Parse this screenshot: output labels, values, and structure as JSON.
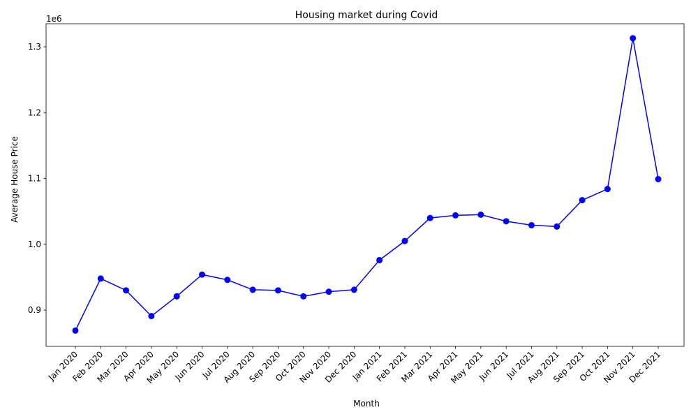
{
  "chart_data": {
    "type": "line",
    "title": "Housing market during Covid",
    "xlabel": "Month",
    "ylabel": "Average House Price",
    "y_offset_text": "1e6",
    "y_multiplier": 1000000,
    "categories": [
      "Jan 2020",
      "Feb 2020",
      "Mar 2020",
      "Apr 2020",
      "May 2020",
      "Jun 2020",
      "Jul 2020",
      "Aug 2020",
      "Sep 2020",
      "Oct 2020",
      "Nov 2020",
      "Dec 2020",
      "Jan 2021",
      "Feb 2021",
      "Mar 2021",
      "Apr 2021",
      "May 2021",
      "Jun 2021",
      "Jul 2021",
      "Aug 2021",
      "Sep 2021",
      "Oct 2021",
      "Nov 2021",
      "Dec 2021"
    ],
    "series": [
      {
        "values": [
          869000,
          948000,
          930000,
          891000,
          921000,
          954000,
          946000,
          931000,
          930000,
          921000,
          928000,
          931000,
          976000,
          1005000,
          1040000,
          1044000,
          1045000,
          1035000,
          1029000,
          1027000,
          1067000,
          1084000,
          1313000,
          1099000
        ],
        "color": "#0000ff"
      }
    ],
    "ylim": [
      845000,
      1335000
    ],
    "yticks": [
      900000,
      1000000,
      1100000,
      1200000,
      1300000
    ],
    "ytick_labels": [
      "0.9",
      "1.0",
      "1.1",
      "1.2",
      "1.3"
    ],
    "grid": false,
    "legend": false,
    "marker": "circle"
  }
}
